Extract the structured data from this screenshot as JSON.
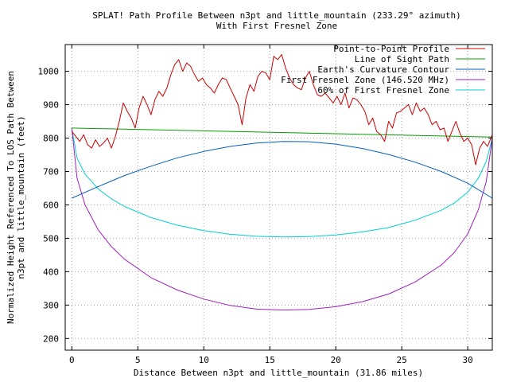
{
  "chart_data": {
    "type": "line",
    "title": "SPLAT! Path Profile Between n3pt and little_mountain (233.29° azimuth)",
    "subtitle": "With First Fresnel Zone",
    "xlabel": "Distance Between n3pt and little_mountain (31.86 miles)",
    "ylabel": "Normalized Height Referenced To LOS Path Between n3pt and little_mountain (feet)",
    "ylabel_lines": [
      "Normalized Height Referenced To LOS Path Between",
      "n3pt and little_mountain (feet)"
    ],
    "xlim": [
      -0.5,
      31.86
    ],
    "ylim": [
      165,
      1080
    ],
    "xticks": [
      0,
      5,
      10,
      15,
      20,
      25,
      30
    ],
    "yticks": [
      200,
      300,
      400,
      500,
      600,
      700,
      800,
      900,
      1000
    ],
    "grid": true,
    "legend_position": "top-right",
    "series": [
      {
        "name": "Point-to-Point Profile",
        "color": "#cc0000",
        "x": [
          0,
          0.3,
          0.6,
          0.9,
          1.2,
          1.5,
          1.8,
          2.1,
          2.4,
          2.7,
          3.0,
          3.3,
          3.6,
          3.9,
          4.2,
          4.5,
          4.8,
          5.1,
          5.4,
          5.7,
          6.0,
          6.3,
          6.6,
          6.9,
          7.2,
          7.5,
          7.8,
          8.1,
          8.4,
          8.7,
          9.0,
          9.3,
          9.6,
          9.9,
          10.2,
          10.5,
          10.8,
          11.1,
          11.4,
          11.7,
          12.0,
          12.3,
          12.6,
          12.9,
          13.2,
          13.5,
          13.8,
          14.1,
          14.4,
          14.7,
          15.0,
          15.3,
          15.6,
          15.9,
          16.2,
          16.5,
          16.8,
          17.1,
          17.4,
          17.7,
          18.0,
          18.3,
          18.6,
          18.9,
          19.2,
          19.5,
          19.8,
          20.1,
          20.4,
          20.7,
          21.0,
          21.3,
          21.6,
          21.9,
          22.2,
          22.5,
          22.8,
          23.1,
          23.4,
          23.7,
          24.0,
          24.3,
          24.6,
          24.9,
          25.2,
          25.5,
          25.8,
          26.1,
          26.4,
          26.7,
          27.0,
          27.3,
          27.6,
          27.9,
          28.2,
          28.5,
          28.8,
          29.1,
          29.4,
          29.7,
          30.0,
          30.3,
          30.6,
          30.9,
          31.2,
          31.5,
          31.86
        ],
        "y": [
          820,
          805,
          790,
          810,
          780,
          770,
          795,
          775,
          785,
          800,
          770,
          805,
          850,
          905,
          880,
          860,
          830,
          890,
          925,
          900,
          870,
          915,
          940,
          925,
          950,
          990,
          1020,
          1035,
          1000,
          1025,
          1015,
          990,
          970,
          980,
          960,
          950,
          935,
          960,
          980,
          975,
          950,
          925,
          900,
          840,
          920,
          960,
          940,
          985,
          1000,
          995,
          975,
          1045,
          1035,
          1050,
          1010,
          980,
          960,
          950,
          945,
          980,
          1000,
          960,
          930,
          925,
          935,
          920,
          905,
          925,
          900,
          935,
          890,
          920,
          915,
          900,
          880,
          840,
          860,
          820,
          810,
          790,
          850,
          830,
          875,
          880,
          890,
          900,
          870,
          905,
          880,
          890,
          870,
          840,
          850,
          825,
          830,
          790,
          820,
          850,
          815,
          790,
          800,
          780,
          720,
          770,
          790,
          775,
          810
        ]
      },
      {
        "name": "Line of Sight Path",
        "color": "#00a000",
        "x": [
          0,
          31.86
        ],
        "y": [
          830,
          803
        ]
      },
      {
        "name": "Earth's Curvature Contour",
        "color": "#0060c0",
        "x": [
          0,
          2,
          4,
          6,
          8,
          10,
          12,
          14,
          16,
          18,
          20,
          22,
          24,
          26,
          28,
          30,
          31.86
        ],
        "y": [
          620,
          655,
          688,
          716,
          741,
          760,
          775,
          785,
          790,
          789,
          782,
          769,
          751,
          728,
          700,
          665,
          620
        ]
      },
      {
        "name": "First Fresnel Zone (146.520 MHz)",
        "color": "#a020c0",
        "x": [
          0,
          0.4,
          1,
          2,
          3,
          4,
          6,
          8,
          10,
          12,
          14,
          16,
          18,
          20,
          22,
          24,
          26,
          28,
          29,
          30,
          30.8,
          31.4,
          31.86
        ],
        "y": [
          830,
          680,
          600,
          525,
          475,
          437,
          382,
          345,
          318,
          299,
          288,
          285,
          287,
          295,
          310,
          333,
          369,
          420,
          458,
          513,
          585,
          670,
          800
        ]
      },
      {
        "name": "60% of First Fresnel Zone",
        "color": "#00d0d0",
        "x": [
          0,
          0.4,
          1,
          2,
          3,
          4,
          6,
          8,
          10,
          12,
          14,
          16,
          18,
          20,
          22,
          24,
          26,
          28,
          29,
          30,
          30.8,
          31.4,
          31.86
        ],
        "y": [
          830,
          740,
          692,
          648,
          618,
          595,
          562,
          539,
          523,
          512,
          506,
          504,
          505,
          510,
          519,
          532,
          554,
          584,
          606,
          638,
          680,
          730,
          800
        ]
      }
    ]
  }
}
